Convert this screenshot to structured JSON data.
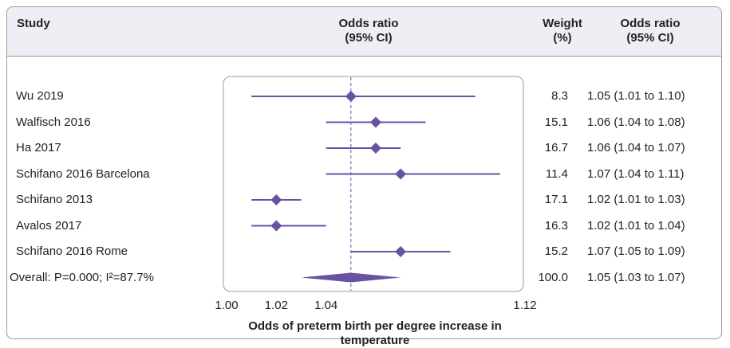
{
  "header": {
    "study": "Study",
    "or_line1": "Odds ratio",
    "or_line2": "(95% CI)",
    "weight_line1": "Weight",
    "weight_line2": "(%)",
    "ci_line1": "Odds ratio",
    "ci_line2": "(95% CI)"
  },
  "chart_data": {
    "type": "forest",
    "title": "",
    "xlabel": "Odds of preterm birth per degree increase in temperature",
    "xlim": [
      1.0,
      1.12
    ],
    "xticks": [
      "1.00",
      "1.02",
      "1.04",
      "1.12"
    ],
    "reference_line": 1.05,
    "series": [
      {
        "study": "Wu 2019",
        "or": 1.05,
        "low": 1.01,
        "high": 1.1,
        "weight": "8.3",
        "ci_text": "1.05 (1.01 to 1.10)"
      },
      {
        "study": "Walfisch 2016",
        "or": 1.06,
        "low": 1.04,
        "high": 1.08,
        "weight": "15.1",
        "ci_text": "1.06 (1.04 to 1.08)"
      },
      {
        "study": "Ha 2017",
        "or": 1.06,
        "low": 1.04,
        "high": 1.07,
        "weight": "16.7",
        "ci_text": "1.06 (1.04 to 1.07)"
      },
      {
        "study": "Schifano 2016 Barcelona",
        "or": 1.07,
        "low": 1.04,
        "high": 1.11,
        "weight": "11.4",
        "ci_text": "1.07 (1.04 to 1.11)"
      },
      {
        "study": "Schifano 2013",
        "or": 1.02,
        "low": 1.01,
        "high": 1.03,
        "weight": "17.1",
        "ci_text": "1.02 (1.01 to 1.03)"
      },
      {
        "study": "Avalos 2017",
        "or": 1.02,
        "low": 1.01,
        "high": 1.04,
        "weight": "16.3",
        "ci_text": "1.02 (1.01 to 1.04)"
      },
      {
        "study": "Schifano 2016 Rome",
        "or": 1.07,
        "low": 1.05,
        "high": 1.09,
        "weight": "15.2",
        "ci_text": "1.07 (1.05 to 1.09)"
      }
    ],
    "overall": {
      "label": "Overall: P=0.000; I²=87.7%",
      "or": 1.05,
      "low": 1.03,
      "high": 1.07,
      "weight": "100.0",
      "ci_text": "1.05 (1.03 to 1.07)"
    },
    "colors": {
      "marker": "#6a52a3",
      "reference": "#6a52a3",
      "panel_border": "#9a9a9a",
      "header_bg": "#f0edf5"
    }
  }
}
